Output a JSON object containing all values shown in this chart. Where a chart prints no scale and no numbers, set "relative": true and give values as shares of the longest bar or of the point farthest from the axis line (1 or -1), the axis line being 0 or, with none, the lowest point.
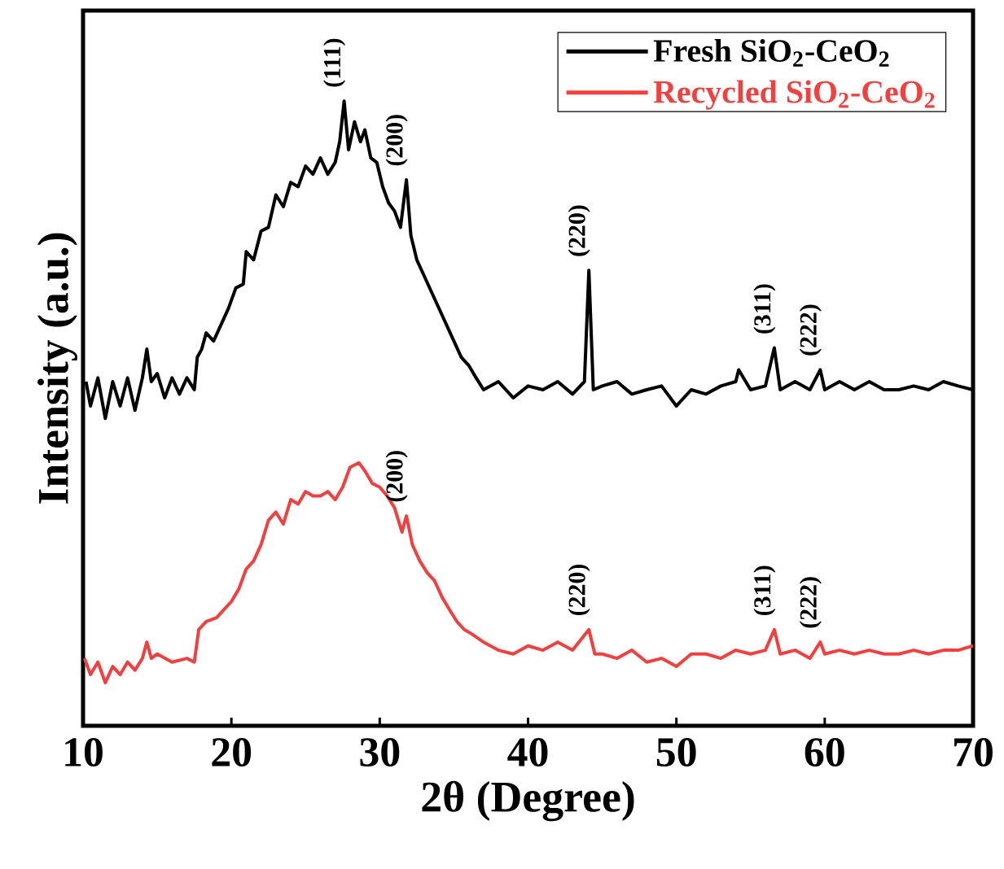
{
  "chart_data": {
    "type": "line",
    "relative": true,
    "xlabel": "2θ (Degree)",
    "ylabel": "Intensity (a.u.)",
    "xlim": [
      10,
      70
    ],
    "xticks": [
      10,
      20,
      30,
      40,
      50,
      60,
      70
    ],
    "grid": false,
    "legend": "top right",
    "series": [
      {
        "name": "Fresh SiO$_{2}$-CeO$_{2}$",
        "color": "#000000",
        "x": [
          10.2,
          10.5,
          11,
          11.5,
          12,
          12.5,
          13,
          13.5,
          14,
          14.3,
          14.6,
          15,
          15.5,
          16,
          16.5,
          17,
          17.5,
          17.7,
          18,
          18.3,
          18.8,
          19.3,
          19.8,
          20.3,
          20.8,
          21.0,
          21.5,
          22,
          22.5,
          23,
          23.5,
          24,
          24.5,
          25,
          25.5,
          26,
          26.5,
          27,
          27.3,
          27.6,
          27.9,
          28.3,
          28.7,
          29.0,
          29.4,
          29.8,
          30.2,
          30.6,
          31.0,
          31.4,
          31.8,
          32.1,
          32.5,
          33,
          33.5,
          34,
          34.5,
          35,
          35.5,
          36,
          36.5,
          37,
          38,
          39,
          40,
          41,
          42,
          43,
          43.8,
          44.1,
          44.4,
          45,
          46,
          47,
          48,
          49,
          50,
          51,
          52,
          53,
          54,
          54.2,
          55,
          56,
          56.6,
          57,
          58,
          59,
          59.7,
          60,
          61,
          62,
          63,
          64,
          65,
          66,
          67,
          68,
          69,
          70
        ],
        "values": [
          0.551,
          0.512,
          0.557,
          0.492,
          0.551,
          0.512,
          0.557,
          0.505,
          0.557,
          0.603,
          0.551,
          0.564,
          0.525,
          0.557,
          0.531,
          0.557,
          0.538,
          0.59,
          0.603,
          0.629,
          0.616,
          0.642,
          0.668,
          0.701,
          0.707,
          0.759,
          0.746,
          0.792,
          0.798,
          0.85,
          0.831,
          0.87,
          0.863,
          0.896,
          0.883,
          0.909,
          0.883,
          0.902,
          0.935,
          1,
          0.922,
          0.967,
          0.935,
          0.954,
          0.909,
          0.902,
          0.863,
          0.837,
          0.824,
          0.798,
          0.874,
          0.785,
          0.746,
          0.72,
          0.694,
          0.668,
          0.642,
          0.616,
          0.59,
          0.577,
          0.557,
          0.538,
          0.551,
          0.525,
          0.544,
          0.538,
          0.551,
          0.531,
          0.551,
          0.729,
          0.538,
          0.544,
          0.551,
          0.531,
          0.538,
          0.544,
          0.512,
          0.538,
          0.531,
          0.544,
          0.551,
          0.57,
          0.538,
          0.544,
          0.605,
          0.538,
          0.551,
          0.538,
          0.57,
          0.538,
          0.551,
          0.538,
          0.551,
          0.538,
          0.538,
          0.544,
          0.538,
          0.551,
          0.544,
          0.538
        ]
      },
      {
        "name": "Recycled SiO$_{2}$-CeO$_{2}$",
        "color": "#f04040",
        "x": [
          10.1,
          10.5,
          11,
          11.5,
          12,
          12.5,
          13,
          13.5,
          14,
          14.3,
          14.6,
          15,
          16,
          17,
          17.5,
          17.8,
          18.3,
          19,
          19.5,
          20,
          20.5,
          21,
          21.5,
          22,
          22.5,
          23,
          23.5,
          24,
          24.5,
          25,
          25.5,
          26,
          26.5,
          27,
          27.5,
          28,
          28.6,
          29,
          29.5,
          30,
          30.5,
          31,
          31.5,
          31.8,
          32.2,
          32.7,
          33.2,
          33.7,
          34.2,
          34.7,
          35.2,
          35.7,
          36.2,
          37,
          38,
          39,
          40,
          41,
          42,
          43,
          44.1,
          44.5,
          45,
          46,
          47,
          48,
          49,
          50,
          51,
          52,
          53,
          54,
          55,
          56,
          56.6,
          57,
          58,
          59,
          59.7,
          60,
          61,
          62,
          63,
          64,
          65,
          66,
          67,
          68,
          69,
          70
        ],
        "values": [
          0.108,
          0.082,
          0.102,
          0.069,
          0.095,
          0.082,
          0.102,
          0.089,
          0.108,
          0.134,
          0.108,
          0.115,
          0.102,
          0.108,
          0.102,
          0.154,
          0.167,
          0.173,
          0.186,
          0.199,
          0.219,
          0.251,
          0.264,
          0.29,
          0.329,
          0.342,
          0.323,
          0.362,
          0.355,
          0.375,
          0.368,
          0.368,
          0.375,
          0.362,
          0.382,
          0.414,
          0.421,
          0.408,
          0.388,
          0.382,
          0.368,
          0.349,
          0.31,
          0.336,
          0.29,
          0.264,
          0.245,
          0.232,
          0.206,
          0.186,
          0.167,
          0.154,
          0.147,
          0.134,
          0.121,
          0.115,
          0.128,
          0.121,
          0.134,
          0.121,
          0.154,
          0.115,
          0.115,
          0.108,
          0.121,
          0.102,
          0.108,
          0.095,
          0.115,
          0.115,
          0.108,
          0.121,
          0.115,
          0.121,
          0.154,
          0.115,
          0.121,
          0.108,
          0.134,
          0.115,
          0.121,
          0.115,
          0.121,
          0.115,
          0.115,
          0.121,
          0.115,
          0.121,
          0.121,
          0.128
        ]
      }
    ],
    "annotations": [
      {
        "text": "(111)",
        "x": 27.6,
        "y": 1
      },
      {
        "text": "(200)",
        "x": 31.8,
        "y": 0.874
      },
      {
        "text": "(220)",
        "x": 44.1,
        "y": 0.729
      },
      {
        "text": "(311)",
        "x": 56.6,
        "y": 0.605
      },
      {
        "text": "(222)",
        "x": 59.7,
        "y": 0.57
      },
      {
        "text": "(200)",
        "x": 31.8,
        "y": 0.336
      },
      {
        "text": "(220)",
        "x": 44.1,
        "y": 0.154
      },
      {
        "text": "(311)",
        "x": 56.6,
        "y": 0.154
      },
      {
        "text": "(222)",
        "x": 59.7,
        "y": 0.134
      }
    ]
  }
}
